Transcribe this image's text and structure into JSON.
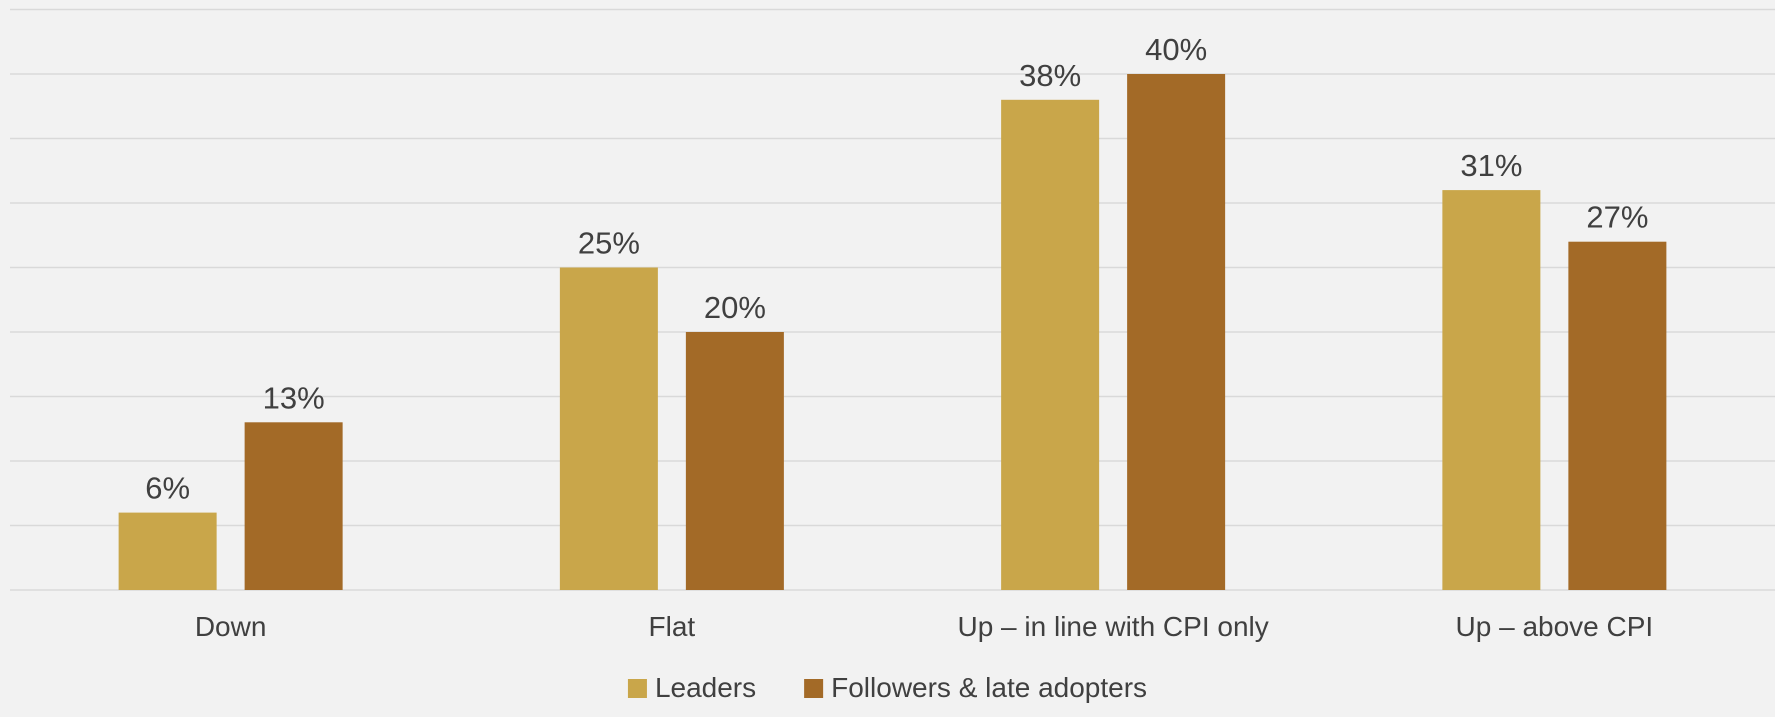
{
  "chart_data": {
    "type": "bar",
    "categories": [
      "Down",
      "Flat",
      "Up – in line with CPI only",
      "Up – above CPI"
    ],
    "series": [
      {
        "name": "Leaders",
        "values": [
          6,
          25,
          38,
          31
        ],
        "color": "#c9a64a"
      },
      {
        "name": "Followers & late adopters",
        "values": [
          13,
          20,
          40,
          27
        ],
        "color": "#a36a27"
      }
    ],
    "value_suffix": "%",
    "ylim": [
      0,
      45
    ],
    "grid": true,
    "legend_position": "bottom",
    "title": "",
    "xlabel": "",
    "ylabel": ""
  }
}
